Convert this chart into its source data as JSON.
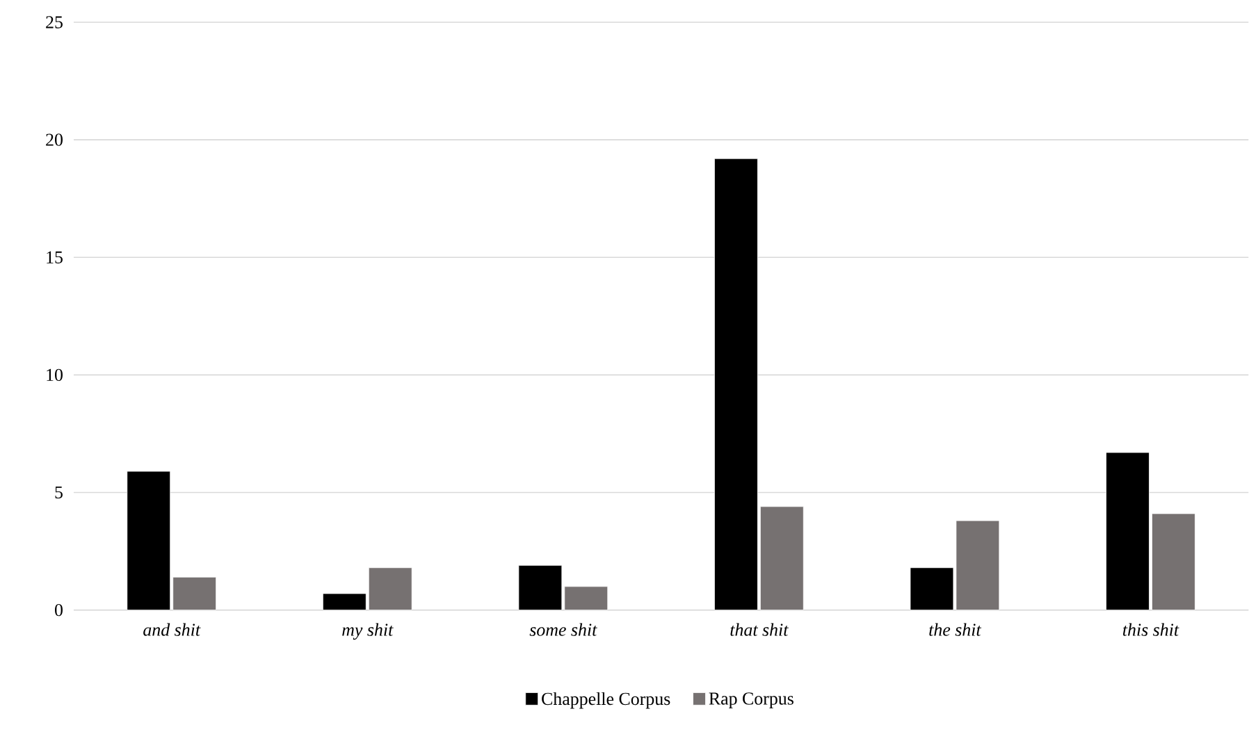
{
  "chart_data": {
    "type": "bar",
    "categories": [
      "and shit",
      "my shit",
      "some shit",
      "that shit",
      "the shit",
      "this shit"
    ],
    "series": [
      {
        "name": "Chappelle Corpus",
        "color": "#000000",
        "values": [
          5.9,
          0.7,
          1.9,
          19.2,
          1.8,
          6.7
        ]
      },
      {
        "name": "Rap Corpus",
        "color": "#767171",
        "values": [
          1.4,
          1.8,
          1.0,
          4.4,
          3.8,
          4.1
        ]
      }
    ],
    "ylim": [
      0,
      25
    ],
    "yticks": [
      0,
      5,
      10,
      15,
      20,
      25
    ],
    "grid": "y",
    "legend": "bottom"
  }
}
